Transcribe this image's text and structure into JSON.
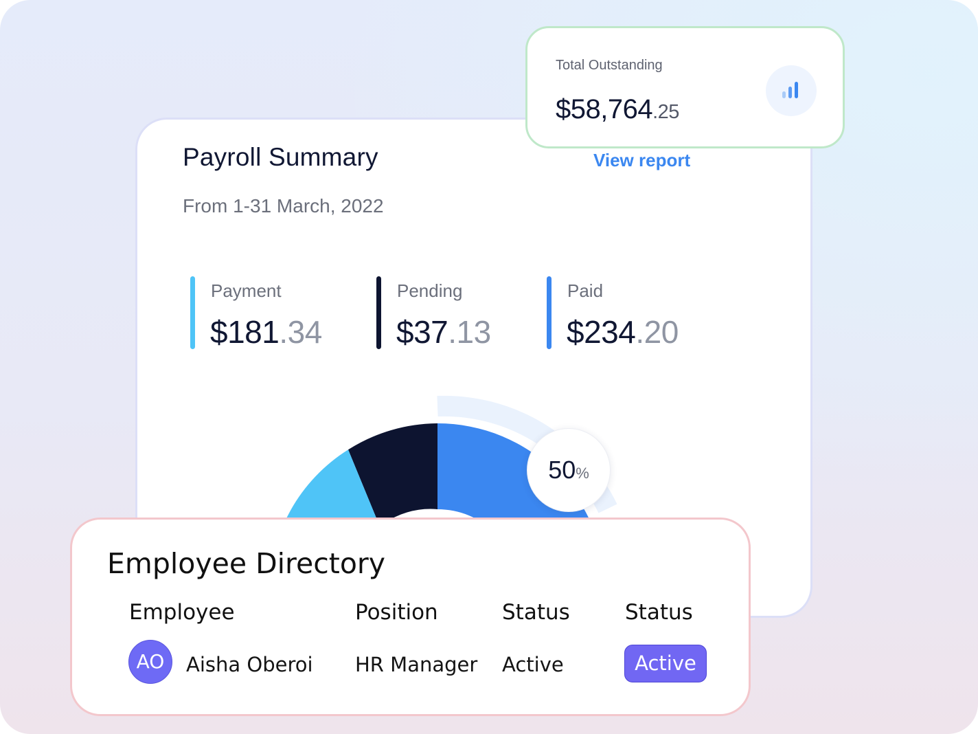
{
  "payroll": {
    "title": "Payroll Summary",
    "view_report": "View report",
    "subtitle": "From 1-31 March, 2022",
    "stats": [
      {
        "label": "Payment",
        "dollars": "$181",
        "cents": ".34",
        "color": "#4fc4f7"
      },
      {
        "label": "Pending",
        "dollars": "$37",
        "cents": ".13",
        "color": "#0d1430"
      },
      {
        "label": "Paid",
        "dollars": "$234",
        "cents": ".20",
        "color": "#3b87f0"
      }
    ],
    "donut": {
      "percent": "50",
      "percent_sign": "%",
      "segments": [
        {
          "name": "Payment",
          "color": "#4fc4f7"
        },
        {
          "name": "Pending",
          "color": "#0d1430"
        },
        {
          "name": "Paid",
          "color": "#3b87f0"
        }
      ],
      "track_color": "#eaf2fd"
    }
  },
  "outstanding": {
    "label": "Total Outstanding",
    "dollars": "$58,764",
    "cents": ".25",
    "icon": "bar-chart-icon"
  },
  "directory": {
    "title": "Employee Directory",
    "columns": [
      "Employee",
      "Position",
      "Status",
      "Status"
    ],
    "rows": [
      {
        "initials": "AO",
        "name": "Aisha Oberoi",
        "position": "HR Manager",
        "status": "Active",
        "status_badge": "Active"
      }
    ]
  }
}
